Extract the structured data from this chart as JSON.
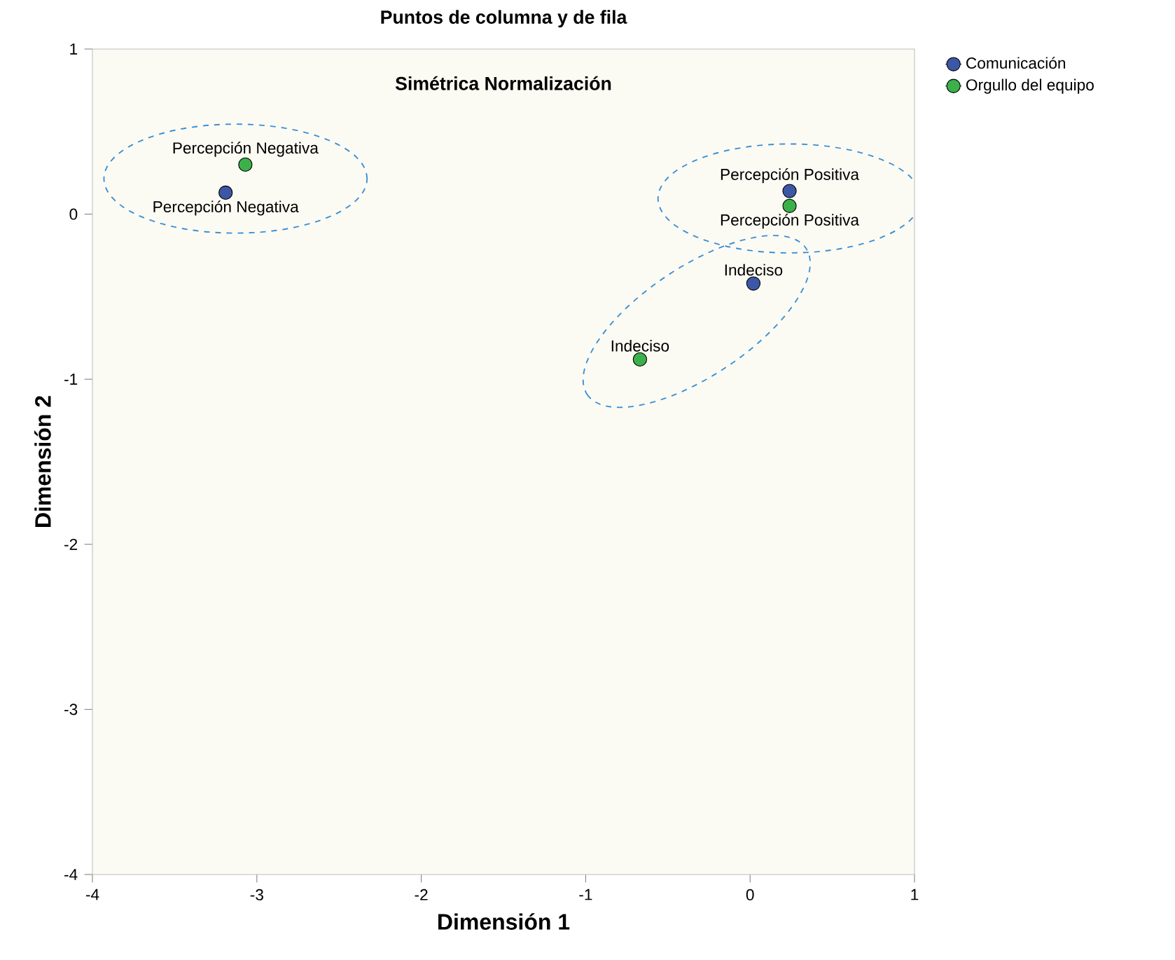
{
  "chart_data": {
    "type": "scatter",
    "title": "Puntos de columna y de fila",
    "subtitle": "Simétrica Normalización",
    "xlabel": "Dimensión 1",
    "ylabel": "Dimensión 2",
    "series": [
      {
        "name": "Comunicación",
        "color": "#3c57a5",
        "x": [
          -3.19,
          0.24,
          0.02
        ],
        "values": [
          0.13,
          0.14,
          -0.42
        ]
      },
      {
        "name": "Orgullo del equipo",
        "color": "#3cb04a",
        "x": [
          -3.07,
          0.24,
          -0.67
        ],
        "values": [
          0.3,
          0.05,
          -0.88
        ]
      }
    ],
    "annotations": [
      {
        "text": "Percepción Negativa",
        "x": -3.19,
        "y": 0.13
      },
      {
        "text": "Percepción Positiva",
        "x": 0.24,
        "y": 0.14
      },
      {
        "text": "Indeciso",
        "x": 0.02,
        "y": -0.42
      },
      {
        "text": "Percepción Negativa",
        "x": -3.07,
        "y": 0.3
      },
      {
        "text": "Percepción Positiva",
        "x": 0.24,
        "y": 0.05
      },
      {
        "text": "Indeciso",
        "x": -0.67,
        "y": -0.88
      }
    ],
    "xlim": [
      -4,
      1
    ],
    "ylim": [
      -4,
      1
    ],
    "xticks": [
      -4,
      -3,
      -2,
      -1,
      0,
      1
    ],
    "yticks": [
      -4,
      -3,
      -2,
      -1,
      0,
      1
    ],
    "grid": false,
    "legend": "top right",
    "marker": "circle"
  }
}
